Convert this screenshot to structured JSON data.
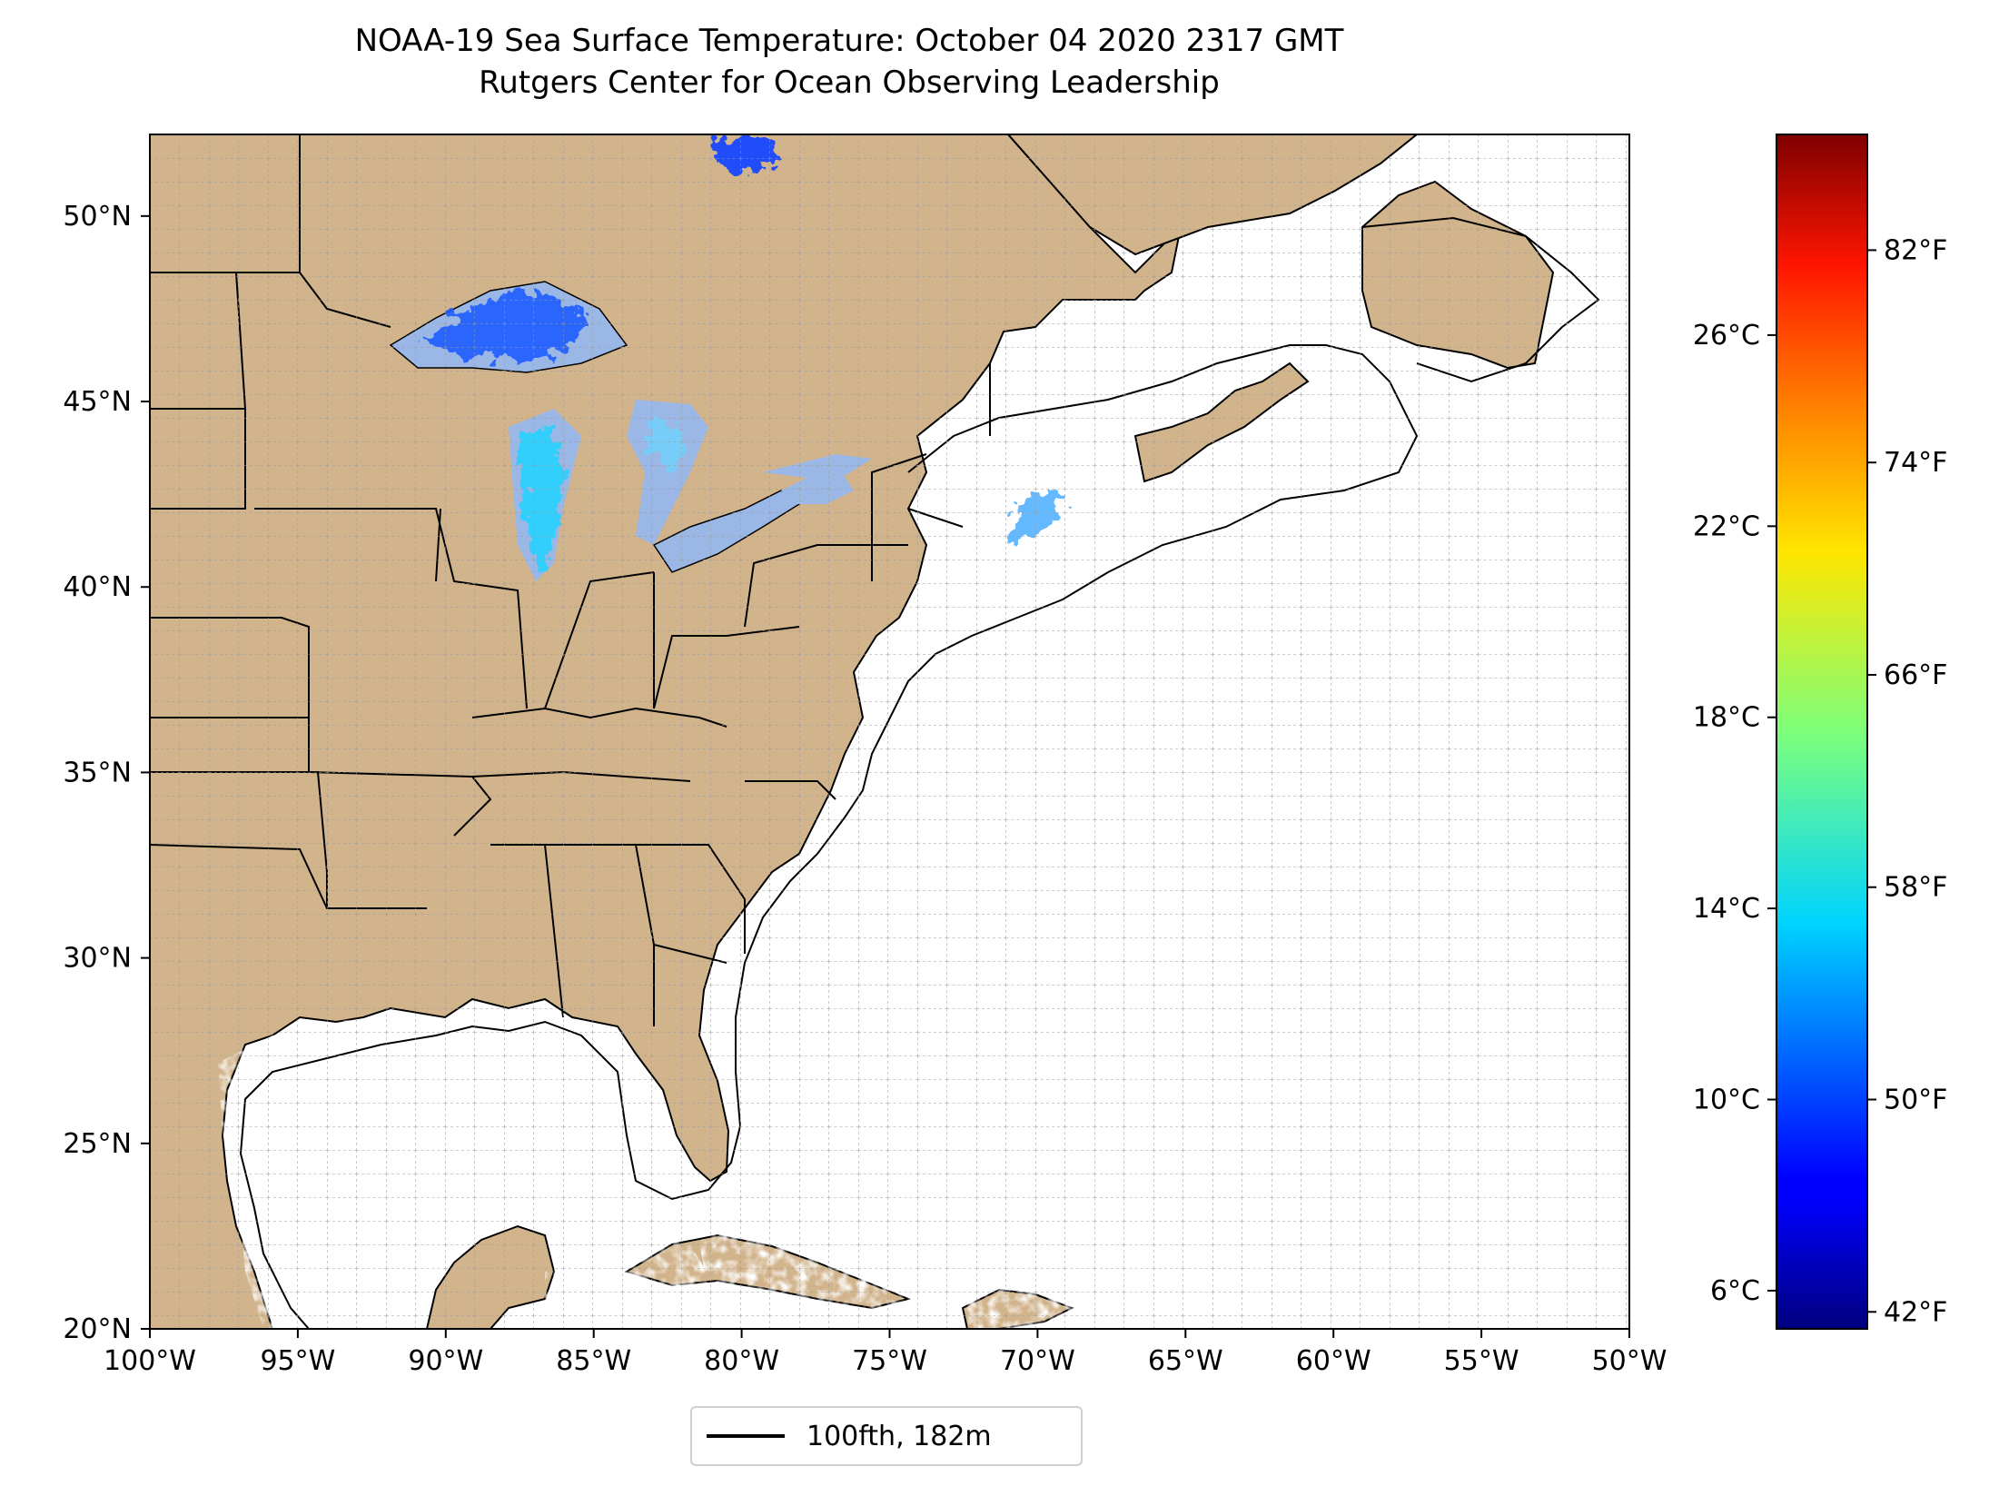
{
  "title": {
    "line1": "NOAA-19 Sea Surface Temperature: October 04 2020 2317 GMT",
    "line2": "Rutgers Center for Ocean Observing Leadership"
  },
  "map": {
    "lon_range": [
      -100,
      -50
    ],
    "lat_range": [
      20,
      52.2
    ],
    "lon_ticks": [
      "100°W",
      "95°W",
      "90°W",
      "85°W",
      "80°W",
      "75°W",
      "70°W",
      "65°W",
      "60°W",
      "55°W",
      "50°W"
    ],
    "lat_ticks": [
      "20°N",
      "25°N",
      "30°N",
      "35°N",
      "40°N",
      "45°N",
      "50°N"
    ],
    "land_color": "#d2b48c",
    "lake_color": "#9ab7e6",
    "grid": true
  },
  "colorbar": {
    "cmap": "jet",
    "celsius_range": [
      5.2,
      30.2
    ],
    "celsius_ticks": [
      "6°C",
      "10°C",
      "14°C",
      "18°C",
      "22°C",
      "26°C"
    ],
    "fahrenheit_ticks": [
      "42°F",
      "50°F",
      "58°F",
      "66°F",
      "74°F",
      "82°F"
    ]
  },
  "legend": {
    "label": "100fth, 182m",
    "line_color": "#000000"
  }
}
